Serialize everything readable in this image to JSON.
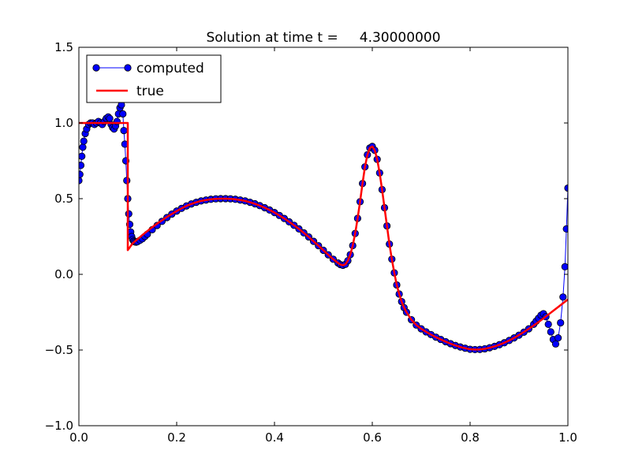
{
  "chart_data": {
    "type": "line",
    "title": "Solution at time t =     4.30000000",
    "xlabel": "",
    "ylabel": "",
    "xlim": [
      0.0,
      1.0
    ],
    "ylim": [
      -1.0,
      1.5
    ],
    "x_ticks": [
      "0.0",
      "0.2",
      "0.4",
      "0.6",
      "0.8",
      "1.0"
    ],
    "y_ticks": [
      "−1.0",
      "−0.5",
      "0.0",
      "0.5",
      "1.0",
      "1.5"
    ],
    "grid": false,
    "legend_position": "top-left",
    "series": [
      {
        "name": "computed",
        "style": "line-with-circle-markers",
        "color": "#0000ff",
        "edge_color": "#000000",
        "points": [
          [
            0.0,
            0.62
          ],
          [
            0.002,
            0.66
          ],
          [
            0.004,
            0.72
          ],
          [
            0.006,
            0.78
          ],
          [
            0.008,
            0.84
          ],
          [
            0.01,
            0.88
          ],
          [
            0.013,
            0.93
          ],
          [
            0.016,
            0.96
          ],
          [
            0.02,
            0.99
          ],
          [
            0.024,
            1.0
          ],
          [
            0.028,
            1.0
          ],
          [
            0.032,
            0.99
          ],
          [
            0.036,
            1.0
          ],
          [
            0.04,
            1.01
          ],
          [
            0.044,
            1.0
          ],
          [
            0.048,
            0.99
          ],
          [
            0.052,
            1.01
          ],
          [
            0.056,
            1.03
          ],
          [
            0.06,
            1.04
          ],
          [
            0.063,
            1.03
          ],
          [
            0.066,
            0.99
          ],
          [
            0.069,
            0.97
          ],
          [
            0.072,
            0.96
          ],
          [
            0.075,
            0.98
          ],
          [
            0.078,
            1.01
          ],
          [
            0.081,
            1.06
          ],
          [
            0.084,
            1.1
          ],
          [
            0.087,
            1.12
          ],
          [
            0.09,
            1.06
          ],
          [
            0.092,
            0.95
          ],
          [
            0.094,
            0.86
          ],
          [
            0.096,
            0.75
          ],
          [
            0.098,
            0.62
          ],
          [
            0.1,
            0.5
          ],
          [
            0.102,
            0.4
          ],
          [
            0.104,
            0.33
          ],
          [
            0.106,
            0.28
          ],
          [
            0.108,
            0.25
          ],
          [
            0.11,
            0.23
          ],
          [
            0.112,
            0.22
          ],
          [
            0.114,
            0.215
          ],
          [
            0.117,
            0.213
          ],
          [
            0.12,
            0.216
          ],
          [
            0.125,
            0.225
          ],
          [
            0.13,
            0.235
          ],
          [
            0.135,
            0.25
          ],
          [
            0.14,
            0.265
          ],
          [
            0.15,
            0.295
          ],
          [
            0.16,
            0.323
          ],
          [
            0.17,
            0.35
          ],
          [
            0.18,
            0.375
          ],
          [
            0.19,
            0.398
          ],
          [
            0.2,
            0.418
          ],
          [
            0.21,
            0.436
          ],
          [
            0.22,
            0.452
          ],
          [
            0.23,
            0.465
          ],
          [
            0.24,
            0.476
          ],
          [
            0.25,
            0.485
          ],
          [
            0.26,
            0.491
          ],
          [
            0.27,
            0.496
          ],
          [
            0.28,
            0.499
          ],
          [
            0.29,
            0.5
          ],
          [
            0.3,
            0.5
          ],
          [
            0.31,
            0.499
          ],
          [
            0.32,
            0.496
          ],
          [
            0.33,
            0.491
          ],
          [
            0.34,
            0.485
          ],
          [
            0.35,
            0.476
          ],
          [
            0.36,
            0.466
          ],
          [
            0.37,
            0.454
          ],
          [
            0.38,
            0.44
          ],
          [
            0.39,
            0.425
          ],
          [
            0.4,
            0.408
          ],
          [
            0.41,
            0.389
          ],
          [
            0.42,
            0.369
          ],
          [
            0.43,
            0.347
          ],
          [
            0.44,
            0.324
          ],
          [
            0.45,
            0.3
          ],
          [
            0.46,
            0.274
          ],
          [
            0.47,
            0.247
          ],
          [
            0.48,
            0.218
          ],
          [
            0.49,
            0.189
          ],
          [
            0.5,
            0.159
          ],
          [
            0.51,
            0.129
          ],
          [
            0.52,
            0.1
          ],
          [
            0.53,
            0.075
          ],
          [
            0.535,
            0.064
          ],
          [
            0.54,
            0.06
          ],
          [
            0.545,
            0.066
          ],
          [
            0.55,
            0.09
          ],
          [
            0.555,
            0.13
          ],
          [
            0.56,
            0.19
          ],
          [
            0.565,
            0.27
          ],
          [
            0.57,
            0.37
          ],
          [
            0.575,
            0.48
          ],
          [
            0.58,
            0.6
          ],
          [
            0.585,
            0.71
          ],
          [
            0.59,
            0.79
          ],
          [
            0.595,
            0.835
          ],
          [
            0.6,
            0.845
          ],
          [
            0.605,
            0.82
          ],
          [
            0.61,
            0.76
          ],
          [
            0.615,
            0.67
          ],
          [
            0.62,
            0.56
          ],
          [
            0.625,
            0.44
          ],
          [
            0.63,
            0.32
          ],
          [
            0.635,
            0.2
          ],
          [
            0.64,
            0.1
          ],
          [
            0.645,
            0.01
          ],
          [
            0.65,
            -0.07
          ],
          [
            0.655,
            -0.13
          ],
          [
            0.66,
            -0.18
          ],
          [
            0.665,
            -0.22
          ],
          [
            0.67,
            -0.25
          ],
          [
            0.68,
            -0.3
          ],
          [
            0.69,
            -0.335
          ],
          [
            0.7,
            -0.36
          ],
          [
            0.71,
            -0.38
          ],
          [
            0.72,
            -0.398
          ],
          [
            0.73,
            -0.415
          ],
          [
            0.74,
            -0.43
          ],
          [
            0.75,
            -0.445
          ],
          [
            0.76,
            -0.458
          ],
          [
            0.77,
            -0.47
          ],
          [
            0.78,
            -0.48
          ],
          [
            0.79,
            -0.488
          ],
          [
            0.8,
            -0.495
          ],
          [
            0.81,
            -0.497
          ],
          [
            0.82,
            -0.496
          ],
          [
            0.83,
            -0.492
          ],
          [
            0.84,
            -0.485
          ],
          [
            0.85,
            -0.476
          ],
          [
            0.86,
            -0.465
          ],
          [
            0.87,
            -0.452
          ],
          [
            0.88,
            -0.437
          ],
          [
            0.89,
            -0.42
          ],
          [
            0.9,
            -0.402
          ],
          [
            0.91,
            -0.382
          ],
          [
            0.92,
            -0.36
          ],
          [
            0.93,
            -0.33
          ],
          [
            0.935,
            -0.31
          ],
          [
            0.94,
            -0.29
          ],
          [
            0.945,
            -0.27
          ],
          [
            0.95,
            -0.26
          ],
          [
            0.955,
            -0.28
          ],
          [
            0.96,
            -0.33
          ],
          [
            0.965,
            -0.38
          ],
          [
            0.97,
            -0.43
          ],
          [
            0.975,
            -0.46
          ],
          [
            0.98,
            -0.42
          ],
          [
            0.985,
            -0.32
          ],
          [
            0.99,
            -0.15
          ],
          [
            0.994,
            0.05
          ],
          [
            0.997,
            0.3
          ],
          [
            1.0,
            0.57
          ]
        ]
      },
      {
        "name": "true",
        "style": "line",
        "color": "#ff0000",
        "points": [
          [
            0.0,
            1.0
          ],
          [
            0.1,
            1.0
          ],
          [
            0.1,
            0.16
          ],
          [
            0.11,
            0.205
          ],
          [
            0.12,
            0.232
          ],
          [
            0.13,
            0.26
          ],
          [
            0.14,
            0.286
          ],
          [
            0.15,
            0.311
          ],
          [
            0.16,
            0.335
          ],
          [
            0.17,
            0.357
          ],
          [
            0.18,
            0.379
          ],
          [
            0.19,
            0.399
          ],
          [
            0.2,
            0.418
          ],
          [
            0.21,
            0.436
          ],
          [
            0.22,
            0.452
          ],
          [
            0.23,
            0.465
          ],
          [
            0.24,
            0.476
          ],
          [
            0.25,
            0.485
          ],
          [
            0.26,
            0.491
          ],
          [
            0.27,
            0.496
          ],
          [
            0.28,
            0.499
          ],
          [
            0.29,
            0.5
          ],
          [
            0.3,
            0.5
          ],
          [
            0.31,
            0.499
          ],
          [
            0.32,
            0.496
          ],
          [
            0.33,
            0.491
          ],
          [
            0.34,
            0.485
          ],
          [
            0.35,
            0.476
          ],
          [
            0.36,
            0.466
          ],
          [
            0.37,
            0.454
          ],
          [
            0.38,
            0.44
          ],
          [
            0.39,
            0.425
          ],
          [
            0.4,
            0.408
          ],
          [
            0.41,
            0.389
          ],
          [
            0.42,
            0.369
          ],
          [
            0.43,
            0.347
          ],
          [
            0.44,
            0.324
          ],
          [
            0.45,
            0.3
          ],
          [
            0.46,
            0.274
          ],
          [
            0.47,
            0.247
          ],
          [
            0.48,
            0.218
          ],
          [
            0.49,
            0.189
          ],
          [
            0.5,
            0.159
          ],
          [
            0.51,
            0.129
          ],
          [
            0.52,
            0.1
          ],
          [
            0.53,
            0.075
          ],
          [
            0.535,
            0.064
          ],
          [
            0.54,
            0.06
          ],
          [
            0.545,
            0.066
          ],
          [
            0.55,
            0.09
          ],
          [
            0.555,
            0.13
          ],
          [
            0.56,
            0.19
          ],
          [
            0.565,
            0.27
          ],
          [
            0.57,
            0.37
          ],
          [
            0.575,
            0.48
          ],
          [
            0.58,
            0.6
          ],
          [
            0.585,
            0.71
          ],
          [
            0.59,
            0.79
          ],
          [
            0.595,
            0.835
          ],
          [
            0.6,
            0.845
          ],
          [
            0.605,
            0.82
          ],
          [
            0.61,
            0.76
          ],
          [
            0.615,
            0.67
          ],
          [
            0.62,
            0.56
          ],
          [
            0.625,
            0.44
          ],
          [
            0.63,
            0.32
          ],
          [
            0.635,
            0.2
          ],
          [
            0.64,
            0.1
          ],
          [
            0.645,
            0.01
          ],
          [
            0.65,
            -0.07
          ],
          [
            0.655,
            -0.13
          ],
          [
            0.66,
            -0.18
          ],
          [
            0.665,
            -0.22
          ],
          [
            0.67,
            -0.25
          ],
          [
            0.68,
            -0.3
          ],
          [
            0.69,
            -0.335
          ],
          [
            0.7,
            -0.36
          ],
          [
            0.71,
            -0.38
          ],
          [
            0.72,
            -0.398
          ],
          [
            0.73,
            -0.415
          ],
          [
            0.74,
            -0.43
          ],
          [
            0.75,
            -0.445
          ],
          [
            0.76,
            -0.458
          ],
          [
            0.77,
            -0.47
          ],
          [
            0.78,
            -0.48
          ],
          [
            0.79,
            -0.488
          ],
          [
            0.8,
            -0.495
          ],
          [
            0.81,
            -0.497
          ],
          [
            0.82,
            -0.496
          ],
          [
            0.83,
            -0.492
          ],
          [
            0.84,
            -0.485
          ],
          [
            0.85,
            -0.476
          ],
          [
            0.86,
            -0.465
          ],
          [
            0.87,
            -0.452
          ],
          [
            0.88,
            -0.437
          ],
          [
            0.89,
            -0.42
          ],
          [
            0.9,
            -0.401
          ],
          [
            0.91,
            -0.381
          ],
          [
            0.92,
            -0.36
          ],
          [
            0.93,
            -0.338
          ],
          [
            0.94,
            -0.315
          ],
          [
            0.95,
            -0.291
          ],
          [
            0.96,
            -0.266
          ],
          [
            0.97,
            -0.241
          ],
          [
            0.98,
            -0.216
          ],
          [
            0.99,
            -0.191
          ],
          [
            1.0,
            -0.166
          ]
        ]
      }
    ]
  }
}
